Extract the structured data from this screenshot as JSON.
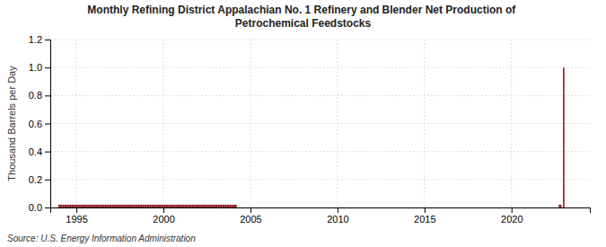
{
  "chart_data": {
    "type": "bar",
    "title": "Monthly Refining District Appalachian No. 1 Refinery and Blender Net Production of\nPetrochemical Feedstocks",
    "ylabel": "Thousand Barrels per Day",
    "annotations": [
      "Source: U.S. Energy Information Administration"
    ],
    "x": [
      1994.0,
      1994.083,
      1994.167,
      1994.25,
      1994.333,
      1994.417,
      1994.5,
      1994.583,
      1994.667,
      1994.75,
      1994.833,
      1994.917,
      1995.0,
      1995.083,
      1995.167,
      1995.25,
      1995.333,
      1995.417,
      1995.5,
      1995.583,
      1995.667,
      1995.75,
      1995.833,
      1995.917,
      1996.0,
      1996.083,
      1996.167,
      1996.25,
      1996.333,
      1996.417,
      1996.5,
      1996.583,
      1996.667,
      1996.75,
      1996.833,
      1996.917,
      1997.0,
      1997.083,
      1997.167,
      1997.25,
      1997.333,
      1997.417,
      1997.5,
      1997.583,
      1997.667,
      1997.75,
      1997.833,
      1997.917,
      1998.0,
      1998.083,
      1998.167,
      1998.25,
      1998.333,
      1998.417,
      1998.5,
      1998.583,
      1998.667,
      1998.75,
      1998.833,
      1998.917,
      1999.0,
      1999.083,
      1999.167,
      1999.25,
      1999.333,
      1999.417,
      1999.5,
      1999.583,
      1999.667,
      1999.75,
      1999.833,
      1999.917,
      2000.0,
      2000.083,
      2000.167,
      2000.25,
      2000.333,
      2000.417,
      2000.5,
      2000.583,
      2000.667,
      2000.75,
      2000.833,
      2000.917,
      2001.0,
      2001.083,
      2001.167,
      2001.25,
      2001.333,
      2001.417,
      2001.5,
      2001.583,
      2001.667,
      2001.75,
      2001.833,
      2001.917,
      2002.0,
      2002.083,
      2002.167,
      2002.25,
      2002.333,
      2002.417,
      2002.5,
      2002.583,
      2002.667,
      2002.75,
      2002.833,
      2002.917,
      2003.0,
      2003.083,
      2003.167,
      2003.25,
      2003.333,
      2003.417,
      2003.5,
      2003.583,
      2003.667,
      2003.75,
      2003.833,
      2003.917,
      2004.0,
      2004.083,
      2004.167,
      2022.75,
      2022.833,
      2023.0
    ],
    "values": [
      0.02,
      0.02,
      0.02,
      0.02,
      0.02,
      0.02,
      0.02,
      0.02,
      0.02,
      0.02,
      0.02,
      0.02,
      0.02,
      0.02,
      0.02,
      0.02,
      0.02,
      0.02,
      0.02,
      0.02,
      0.02,
      0.02,
      0.02,
      0.02,
      0.02,
      0.02,
      0.02,
      0.02,
      0.02,
      0.02,
      0.02,
      0.02,
      0.02,
      0.02,
      0.02,
      0.02,
      0.02,
      0.02,
      0.02,
      0.02,
      0.02,
      0.02,
      0.02,
      0.02,
      0.02,
      0.02,
      0.02,
      0.02,
      0.02,
      0.02,
      0.02,
      0.02,
      0.02,
      0.02,
      0.02,
      0.02,
      0.02,
      0.02,
      0.02,
      0.02,
      0.02,
      0.02,
      0.02,
      0.02,
      0.02,
      0.02,
      0.02,
      0.02,
      0.02,
      0.02,
      0.02,
      0.02,
      0.02,
      0.02,
      0.02,
      0.02,
      0.02,
      0.02,
      0.02,
      0.02,
      0.02,
      0.02,
      0.02,
      0.02,
      0.02,
      0.02,
      0.02,
      0.02,
      0.02,
      0.02,
      0.02,
      0.02,
      0.02,
      0.02,
      0.02,
      0.02,
      0.02,
      0.02,
      0.02,
      0.02,
      0.02,
      0.02,
      0.02,
      0.02,
      0.02,
      0.02,
      0.02,
      0.02,
      0.02,
      0.02,
      0.02,
      0.02,
      0.02,
      0.02,
      0.02,
      0.02,
      0.02,
      0.02,
      0.02,
      0.02,
      0.02,
      0.02,
      0.02,
      0.02,
      0.02,
      1.0
    ],
    "color": "#8b1a1a",
    "xlim": [
      1993.5,
      2024.5
    ],
    "xticks": [
      1995,
      2000,
      2005,
      2010,
      2015,
      2020
    ],
    "ylim": [
      0.0,
      1.2
    ],
    "yticks": [
      {
        "value": 0.0,
        "label": "0.0"
      },
      {
        "value": 0.2,
        "label": "0.2"
      },
      {
        "value": 0.4,
        "label": "0.4"
      },
      {
        "value": 0.6,
        "label": "0.6"
      },
      {
        "value": 0.8,
        "label": "0.8"
      },
      {
        "value": 1.0,
        "label": "1.0"
      },
      {
        "value": 1.2,
        "label": "1.2"
      }
    ],
    "grid": true
  }
}
